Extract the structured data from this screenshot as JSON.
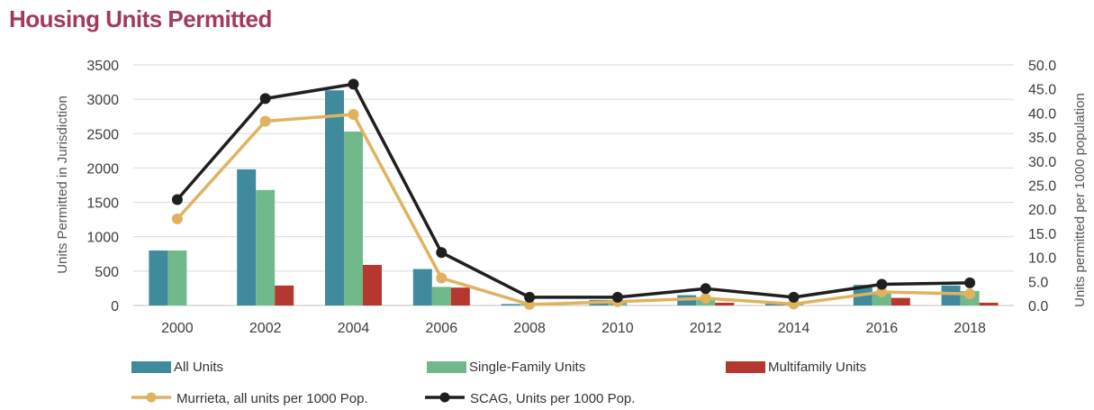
{
  "title": "Housing Units Permitted",
  "colors": {
    "title": "#a23a5c",
    "all_units": "#3f8a9c",
    "single_family": "#6fb98a",
    "multifamily": "#b6372d",
    "murrieta": "#e0b25f",
    "scag": "#1f1f1f",
    "grid": "#d9d9d9"
  },
  "chart_data": {
    "type": "bar",
    "categories": [
      "2000",
      "2002",
      "2004",
      "2006",
      "2008",
      "2010",
      "2012",
      "2014",
      "2016",
      "2018"
    ],
    "ylabel_left": "Units Permitted in Jurisdiction",
    "ylabel_right": "Units permitted per 1000 population",
    "ylim_left": [
      0,
      3500
    ],
    "ylim_right": [
      0,
      50
    ],
    "yticks_left": [
      "0",
      "500",
      "1000",
      "1500",
      "2000",
      "2500",
      "3000",
      "3500"
    ],
    "yticks_right": [
      "0.0",
      "5.0",
      "10.0",
      "15.0",
      "20.0",
      "25.0",
      "30.0",
      "35.0",
      "40.0",
      "45.0",
      "50.0"
    ],
    "grid": true,
    "legend_position": "bottom",
    "bar_series": [
      {
        "name": "All Units",
        "values": [
          800,
          1980,
          3130,
          530,
          20,
          80,
          150,
          30,
          300,
          290
        ]
      },
      {
        "name": "Single-Family Units",
        "values": [
          800,
          1680,
          2530,
          270,
          20,
          80,
          120,
          30,
          190,
          210
        ]
      },
      {
        "name": "Multifamily Units",
        "values": [
          0,
          290,
          590,
          260,
          0,
          0,
          40,
          0,
          110,
          40
        ]
      }
    ],
    "line_series": [
      {
        "name": "Murrieta, all units per 1000 Pop.",
        "values": [
          18.0,
          38.3,
          39.7,
          5.7,
          0.2,
          0.8,
          1.5,
          0.3,
          2.8,
          2.4
        ]
      },
      {
        "name": "SCAG, Units per 1000 Pop.",
        "values": [
          22.0,
          43.0,
          46.0,
          11.0,
          1.7,
          1.7,
          3.5,
          1.7,
          4.4,
          4.7
        ]
      }
    ]
  }
}
